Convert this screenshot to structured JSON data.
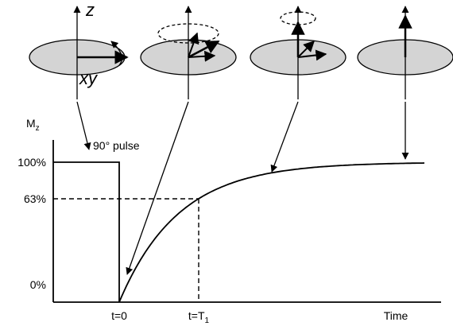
{
  "labels": {
    "z_axis": "z",
    "xy_plane": "xy",
    "pulse": "90° pulse"
  },
  "y_axis": {
    "label": {
      "main": "M",
      "sub": "z"
    },
    "ticks": [
      "100%",
      "63%",
      "0%"
    ]
  },
  "x_axis": {
    "ticks": [
      "t=0",
      {
        "main": "t=T",
        "sub": "1"
      },
      "Time"
    ]
  }
}
